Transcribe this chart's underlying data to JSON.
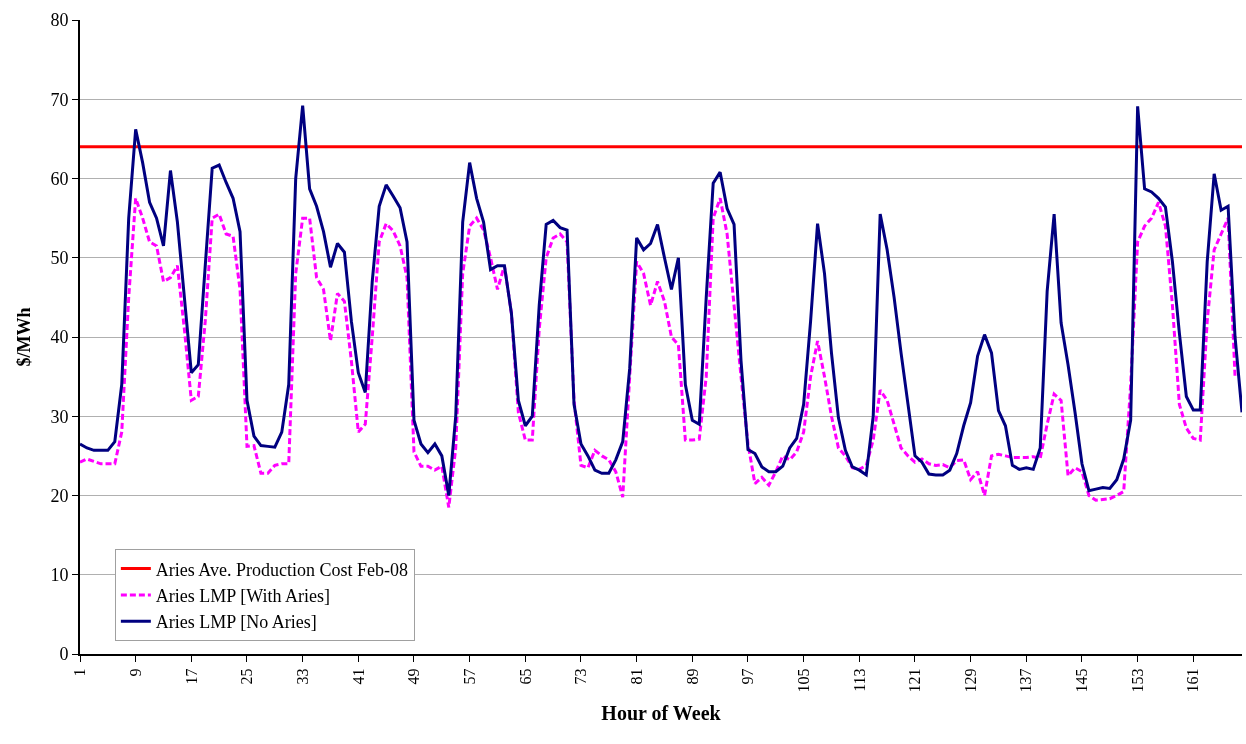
{
  "chart_data": {
    "type": "line",
    "xlabel": "Hour of Week",
    "ylabel": "$/MWh",
    "xlim": [
      1,
      168
    ],
    "xticks": [
      1,
      9,
      17,
      25,
      33,
      41,
      49,
      57,
      65,
      73,
      81,
      89,
      97,
      105,
      113,
      121,
      129,
      137,
      145,
      153,
      161
    ],
    "ylim": [
      0,
      80
    ],
    "yticks": [
      0,
      10,
      20,
      30,
      40,
      50,
      60,
      70,
      80
    ],
    "grid": "y",
    "legend": "bottom left",
    "marker": "none",
    "x": [
      1,
      2,
      3,
      4,
      5,
      6,
      7,
      8,
      9,
      10,
      11,
      12,
      13,
      14,
      15,
      16,
      17,
      18,
      19,
      20,
      21,
      22,
      23,
      24,
      25,
      26,
      27,
      28,
      29,
      30,
      31,
      32,
      33,
      34,
      35,
      36,
      37,
      38,
      39,
      40,
      41,
      42,
      43,
      44,
      45,
      46,
      47,
      48,
      49,
      50,
      51,
      52,
      53,
      54,
      55,
      56,
      57,
      58,
      59,
      60,
      61,
      62,
      63,
      64,
      65,
      66,
      67,
      68,
      69,
      70,
      71,
      72,
      73,
      74,
      75,
      76,
      77,
      78,
      79,
      80,
      81,
      82,
      83,
      84,
      85,
      86,
      87,
      88,
      89,
      90,
      91,
      92,
      93,
      94,
      95,
      96,
      97,
      98,
      99,
      100,
      101,
      102,
      103,
      104,
      105,
      106,
      107,
      108,
      109,
      110,
      111,
      112,
      113,
      114,
      115,
      116,
      117,
      118,
      119,
      120,
      121,
      122,
      123,
      124,
      125,
      126,
      127,
      128,
      129,
      130,
      131,
      132,
      133,
      134,
      135,
      136,
      137,
      138,
      139,
      140,
      141,
      142,
      143,
      144,
      145,
      146,
      147,
      148,
      149,
      150,
      151,
      152,
      153,
      154,
      155,
      156,
      157,
      158,
      159,
      160,
      161,
      162,
      163,
      164,
      165,
      166,
      167,
      168
    ],
    "series": [
      {
        "name": "Aries Ave. Production Cost Feb-08",
        "color": "#ff0000",
        "line_style": "solid",
        "x": [
          1,
          168
        ],
        "values": [
          64,
          64
        ]
      },
      {
        "name": "Aries LMP [With Aries]",
        "color": "#ff00ff",
        "line_style": "dashed",
        "values": [
          24.2,
          24.6,
          24.3,
          24,
          24,
          24,
          28,
          45,
          57.5,
          55,
          52,
          51.5,
          47,
          47.5,
          49,
          41,
          32,
          32.5,
          42,
          55,
          55.5,
          53,
          52.7,
          46,
          26.2,
          26.3,
          22.8,
          22.8,
          23.8,
          24,
          24,
          48,
          55,
          55,
          47.5,
          46,
          39.5,
          45.5,
          44.5,
          37,
          28,
          29,
          40,
          52,
          54.3,
          53.4,
          51.5,
          47.5,
          25.5,
          23.7,
          23.7,
          23.2,
          23.7,
          18.5,
          26,
          48,
          54,
          55,
          53.5,
          50,
          46,
          49,
          43,
          30.5,
          27,
          27,
          41,
          50,
          52.5,
          53,
          52,
          32,
          23.8,
          23.5,
          25.7,
          25,
          24.5,
          23,
          19.8,
          35,
          49.5,
          48,
          44,
          47,
          44.5,
          40,
          39,
          27,
          27,
          27.1,
          35,
          55,
          57.5,
          53,
          44,
          35,
          26.5,
          21.5,
          22.3,
          21.3,
          23,
          25,
          24.5,
          25.5,
          28,
          35,
          39.5,
          35,
          30,
          26,
          25,
          23.5,
          23.3,
          23.8,
          27,
          33.3,
          32,
          29,
          26,
          25,
          24.2,
          24.6,
          24,
          23.8,
          23.9,
          23.5,
          24.4,
          24.5,
          22,
          23,
          20,
          25,
          25.2,
          25,
          24.8,
          24.8,
          24.8,
          24.9,
          24.7,
          29,
          32.8,
          32,
          22.5,
          23.5,
          23,
          20,
          19.4,
          19.5,
          19.6,
          20,
          20.5,
          34,
          52,
          54,
          55,
          57,
          54,
          44,
          31.5,
          28.5,
          27.2,
          27,
          42,
          51,
          53,
          55,
          35,
          null
        ]
      },
      {
        "name": "Aries LMP [No Aries]",
        "color": "#000080",
        "line_style": "solid",
        "values": [
          26.5,
          26,
          25.7,
          25.7,
          25.7,
          26.8,
          34,
          55,
          66.2,
          62,
          57,
          55,
          51.5,
          61,
          54.5,
          45,
          35.5,
          36.5,
          49,
          61.3,
          61.7,
          59.5,
          57.5,
          53.3,
          32,
          27.5,
          26.3,
          26.2,
          26.1,
          28,
          34,
          60,
          69.2,
          58.7,
          56.5,
          53.3,
          48.8,
          51.8,
          50.7,
          42,
          35.5,
          33,
          47,
          56.5,
          59.2,
          57.8,
          56.3,
          52,
          29.5,
          26.5,
          25.4,
          26.5,
          25,
          20,
          30,
          54.5,
          62,
          57.5,
          54.5,
          48.5,
          49,
          49,
          43,
          32,
          28.8,
          30,
          44,
          54.2,
          54.7,
          53.8,
          53.5,
          31.5,
          26.5,
          25,
          23.2,
          22.8,
          22.8,
          24.5,
          26.8,
          36,
          52.5,
          51,
          51.8,
          54.2,
          50,
          46,
          50,
          34,
          29.5,
          29,
          45,
          59.4,
          60.8,
          56.2,
          54.2,
          37,
          25.8,
          25.3,
          23.6,
          23,
          23,
          23.7,
          26,
          27.2,
          31.5,
          42,
          54.3,
          48,
          38,
          29.8,
          25.7,
          23.6,
          23.2,
          22.6,
          30,
          55.5,
          51,
          45,
          38,
          31.5,
          25,
          24.2,
          22.7,
          22.6,
          22.6,
          23.2,
          25.3,
          28.8,
          31.7,
          37.6,
          40.3,
          38,
          30.7,
          28.8,
          23.8,
          23.3,
          23.5,
          23.3,
          26,
          45.8,
          55.5,
          41.8,
          36.5,
          30.5,
          24,
          20.6,
          20.8,
          21,
          20.9,
          22,
          24.6,
          29.5,
          69.1,
          58.7,
          58.3,
          57.5,
          56.4,
          49.5,
          40.5,
          32.5,
          30.8,
          30.8,
          49.5,
          60.6,
          56,
          56.5,
          40,
          30.5
        ]
      }
    ]
  }
}
